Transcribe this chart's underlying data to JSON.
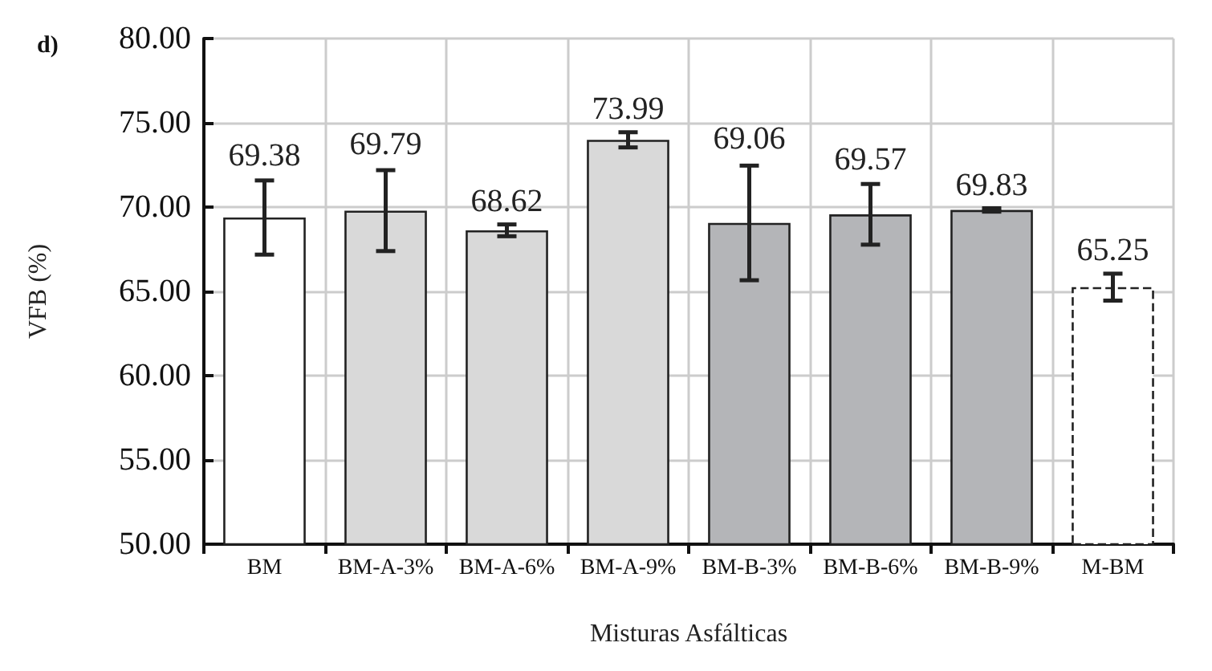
{
  "chart_data": {
    "type": "bar",
    "title": "d)",
    "xlabel": "Misturas Asfálticas",
    "ylabel": "VFB (%)",
    "categories": [
      "BM",
      "BM-A-3%",
      "BM-A-6%",
      "BM-A-9%",
      "BM-B-3%",
      "BM-B-6%",
      "BM-B-9%",
      "M-BM"
    ],
    "series": [
      {
        "colors": [
          "#ffffff",
          "#d9d9d9",
          "#d9d9d9",
          "#d9d9d9",
          "#b4b5b8",
          "#b4b5b8",
          "#b4b5b8",
          null
        ],
        "line_style": "solid",
        "values": [
          69.38,
          69.79,
          68.62,
          73.99,
          69.06,
          69.57,
          69.83,
          null
        ],
        "errors": [
          2.2,
          2.4,
          0.35,
          0.45,
          3.4,
          1.8,
          0.1,
          null
        ]
      },
      {
        "color": "#ffffff",
        "line_style": "dashed",
        "values": [
          null,
          null,
          null,
          null,
          null,
          null,
          null,
          65.25
        ],
        "errors": [
          null,
          null,
          null,
          null,
          null,
          null,
          null,
          0.8
        ]
      }
    ],
    "ylim": [
      50,
      80
    ],
    "yticks": [
      {
        "value": 50,
        "label": "50.00"
      },
      {
        "value": 55,
        "label": "55.00"
      },
      {
        "value": 60,
        "label": "60.00"
      },
      {
        "value": 65,
        "label": "65.00"
      },
      {
        "value": 70,
        "label": "70.00"
      },
      {
        "value": 75,
        "label": "75.00"
      },
      {
        "value": 80,
        "label": "80.00"
      }
    ],
    "grid": true,
    "data_labels": true
  }
}
